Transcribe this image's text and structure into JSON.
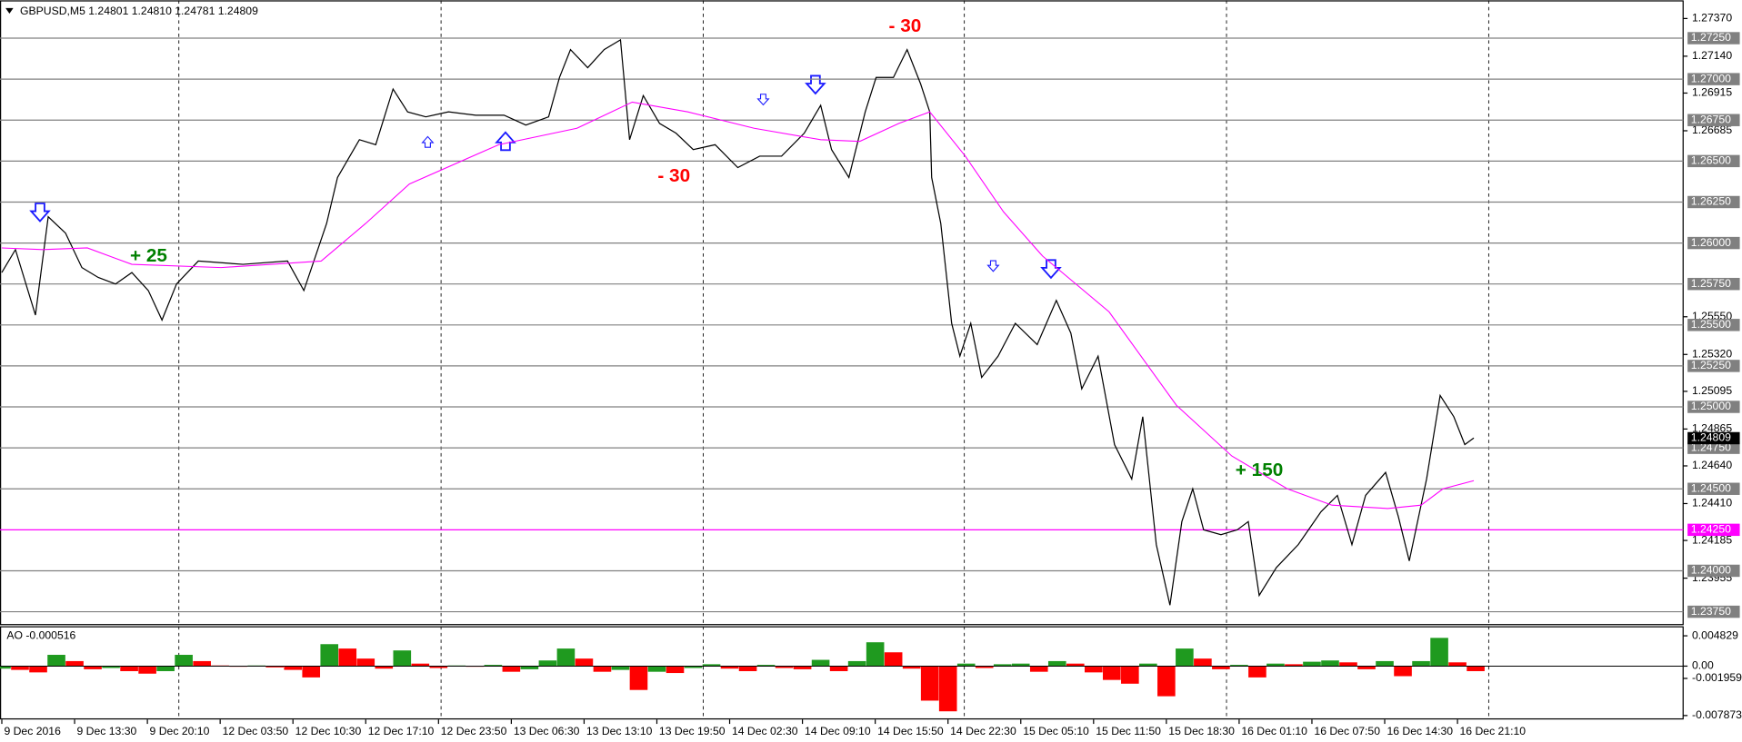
{
  "chart_data": [
    {
      "type": "line",
      "header": "GBPUSD,M5  1.24801 1.24810 1.24781 1.24809",
      "xlim": [
        -2,
        1848
      ],
      "ylim": [
        1.23675,
        1.27447
      ],
      "xticks": [
        {
          "value": 0,
          "label": "9 Dec 2016"
        },
        {
          "value": 80,
          "label": "9 Dec 13:30"
        },
        {
          "value": 160,
          "label": "9 Dec 20:10"
        },
        {
          "value": 240,
          "label": "12 Dec 03:50"
        },
        {
          "value": 320,
          "label": "12 Dec 10:30"
        },
        {
          "value": 400,
          "label": "12 Dec 17:10"
        },
        {
          "value": 480,
          "label": "12 Dec 23:50"
        },
        {
          "value": 560,
          "label": "13 Dec 06:30"
        },
        {
          "value": 640,
          "label": "13 Dec 13:10"
        },
        {
          "value": 720,
          "label": "13 Dec 19:50"
        },
        {
          "value": 800,
          "label": "14 Dec 02:30"
        },
        {
          "value": 880,
          "label": "14 Dec 09:10"
        },
        {
          "value": 960,
          "label": "14 Dec 15:50"
        },
        {
          "value": 1040,
          "label": "14 Dec 22:30"
        },
        {
          "value": 1120,
          "label": "15 Dec 05:10"
        },
        {
          "value": 1200,
          "label": "15 Dec 11:50"
        },
        {
          "value": 1280,
          "label": "15 Dec 18:30"
        },
        {
          "value": 1360,
          "label": "16 Dec 01:10"
        },
        {
          "value": 1440,
          "label": "16 Dec 07:50"
        },
        {
          "value": 1520,
          "label": "16 Dec 14:30"
        },
        {
          "value": 1600,
          "label": "16 Dec 21:10"
        }
      ],
      "yticks": [
        {
          "value": 1.2737,
          "label": "1.27370"
        },
        {
          "value": 1.2714,
          "label": "1.27140"
        },
        1.26915,
        1.26685,
        {
          "value": 1.2555,
          "label": "1.25550"
        },
        {
          "value": 1.2532,
          "label": "1.25320"
        },
        1.25095,
        1.24865,
        {
          "value": 1.2464,
          "label": "1.24640"
        },
        {
          "value": 1.2441,
          "label": "1.24410"
        },
        1.24185,
        1.23955
      ],
      "levels": [
        {
          "value": 1.2725,
          "label": "1.27250"
        },
        {
          "value": 1.27,
          "label": "1.27000"
        },
        {
          "value": 1.2675,
          "label": "1.26750"
        },
        {
          "value": 1.265,
          "label": "1.26500"
        },
        {
          "value": 1.2625,
          "label": "1.26250"
        },
        {
          "value": 1.26,
          "label": "1.26000"
        },
        {
          "value": 1.2575,
          "label": "1.25750"
        },
        {
          "value": 1.255,
          "label": "1.25500"
        },
        {
          "value": 1.2525,
          "label": "1.25250"
        },
        {
          "value": 1.25,
          "label": "1.25000"
        },
        {
          "value": 1.2475,
          "label": "1.24750"
        },
        {
          "value": 1.245,
          "label": "1.24500"
        },
        {
          "value": 1.24,
          "label": "1.24000"
        },
        {
          "value": 1.2375,
          "label": "1.23750"
        }
      ],
      "level_color": "#808080",
      "highlight_level": {
        "value": 1.2425,
        "label": "1.24250",
        "color": "#ff00ff"
      },
      "last_price": 1.24809,
      "series": [
        {
          "color": "#000000",
          "x": [
            0,
            15,
            37,
            51,
            70,
            88,
            106,
            125,
            143,
            161,
            176,
            192,
            216,
            265,
            314,
            332,
            357,
            369,
            393,
            411,
            430,
            446,
            466,
            491,
            521,
            552,
            576,
            601,
            613,
            625,
            644,
            662,
            680,
            690,
            705,
            723,
            741,
            760,
            784,
            809,
            833,
            857,
            882,
            900,
            912,
            931,
            949,
            961,
            980,
            995,
            1010,
            1020,
            1022,
            1032,
            1044,
            1053,
            1065,
            1077,
            1095,
            1114,
            1138,
            1159,
            1175,
            1187,
            1205,
            1223,
            1242,
            1254,
            1269,
            1284,
            1297,
            1309,
            1321,
            1340,
            1358,
            1370,
            1382,
            1401,
            1425,
            1450,
            1468,
            1484,
            1499,
            1521,
            1535,
            1547,
            1566,
            1581,
            1596,
            1608,
            1618
          ],
          "values": [
            1.2582,
            1.2596,
            1.2556,
            1.2616,
            1.2606,
            1.2585,
            1.2579,
            1.2575,
            1.2582,
            1.2571,
            1.2553,
            1.2575,
            1.2589,
            1.2587,
            1.2589,
            1.2571,
            1.2612,
            1.264,
            1.2663,
            1.266,
            1.2694,
            1.268,
            1.2677,
            1.268,
            1.2678,
            1.2678,
            1.2672,
            1.2677,
            1.2701,
            1.2718,
            1.2707,
            1.2718,
            1.2724,
            1.2663,
            1.269,
            1.2673,
            1.2667,
            1.2657,
            1.266,
            1.2646,
            1.2653,
            1.2653,
            1.2667,
            1.2684,
            1.2657,
            1.264,
            1.268,
            1.2701,
            1.2701,
            1.2718,
            1.2697,
            1.268,
            1.264,
            1.2612,
            1.2551,
            1.2531,
            1.2551,
            1.2518,
            1.2531,
            1.2551,
            1.2538,
            1.2565,
            1.2545,
            1.2511,
            1.2531,
            1.2477,
            1.2456,
            1.2494,
            1.2416,
            1.2379,
            1.243,
            1.245,
            1.2425,
            1.2422,
            1.2425,
            1.243,
            1.2385,
            1.2402,
            1.2416,
            1.2436,
            1.2446,
            1.2416,
            1.2446,
            1.246,
            1.2433,
            1.2406,
            1.2456,
            1.2507,
            1.2494,
            1.2477,
            1.2481
          ]
        },
        {
          "color": "#ff00ff",
          "x": [
            0,
            45,
            94,
            143,
            241,
            351,
            400,
            448,
            546,
            632,
            693,
            754,
            827,
            900,
            943,
            986,
            1020,
            1059,
            1101,
            1144,
            1217,
            1291,
            1352,
            1413,
            1462,
            1523,
            1560,
            1584,
            1618
          ],
          "values": [
            1.2597,
            1.2596,
            1.2597,
            1.2587,
            1.2585,
            1.2589,
            1.2612,
            1.2636,
            1.266,
            1.267,
            1.2686,
            1.268,
            1.267,
            1.2663,
            1.2662,
            1.2673,
            1.268,
            1.2653,
            1.2619,
            1.2592,
            1.2558,
            1.2501,
            1.247,
            1.245,
            1.244,
            1.2438,
            1.244,
            1.245,
            1.2455
          ]
        }
      ],
      "annotations": [
        {
          "text": "+ 25",
          "color": "#008000"
        },
        {
          "text": "- 30",
          "color": "#ff0000"
        },
        {
          "text": "- 30",
          "color": "#ff0000"
        },
        {
          "text": "+ 150",
          "color": "#008000"
        }
      ]
    },
    {
      "type": "ao",
      "header": "AO -0.000516",
      "xlim": [
        -2,
        1848
      ],
      "ylim": [
        -0.0085,
        0.006
      ],
      "yticks": [
        0.004829,
        {
          "value": 0,
          "label": "0.00"
        },
        -0.001959,
        -0.007873
      ],
      "up_color": "#1f9a1f",
      "down_color": "#ff0000",
      "x": [
        0,
        20,
        40,
        60,
        80,
        100,
        120,
        140,
        160,
        180,
        200,
        220,
        240,
        260,
        280,
        300,
        320,
        340,
        360,
        380,
        400,
        420,
        440,
        460,
        480,
        500,
        520,
        540,
        560,
        580,
        600,
        620,
        640,
        660,
        680,
        700,
        720,
        740,
        760,
        780,
        800,
        820,
        840,
        860,
        880,
        900,
        920,
        940,
        960,
        980,
        1000,
        1020,
        1040,
        1060,
        1080,
        1100,
        1120,
        1140,
        1160,
        1180,
        1200,
        1220,
        1240,
        1260,
        1280,
        1300,
        1320,
        1340,
        1360,
        1380,
        1400,
        1420,
        1440,
        1460,
        1480,
        1500,
        1520,
        1540,
        1560,
        1580,
        1600,
        1620
      ],
      "values": [
        -0.0004,
        -0.0006,
        -0.001,
        0.0018,
        0.0008,
        -0.0005,
        -0.0003,
        -0.0008,
        -0.0012,
        -0.0008,
        0.0018,
        0.0008,
        0.0001,
        -0.0001,
        0.0001,
        -0.0002,
        -0.0006,
        -0.0018,
        0.0035,
        0.0028,
        0.0012,
        -0.0004,
        0.0025,
        0.0004,
        -0.0003,
        0.0001,
        -0.0001,
        0.0002,
        -0.0009,
        -0.0005,
        0.0009,
        0.0028,
        0.0012,
        -0.0009,
        -0.0006,
        -0.0038,
        -0.0009,
        -0.0011,
        -0.0003,
        0.0003,
        -0.0004,
        -0.0008,
        0.0002,
        -0.0003,
        -0.0005,
        0.001,
        -0.0008,
        0.0008,
        0.0038,
        0.0022,
        -0.0004,
        -0.0055,
        -0.0072,
        0.0004,
        -0.0003,
        0.0003,
        0.0004,
        -0.0009,
        0.0008,
        0.0004,
        -0.001,
        -0.0022,
        -0.0028,
        0.0004,
        -0.0048,
        0.0028,
        0.0012,
        -0.0005,
        0.0002,
        -0.0018,
        0.0004,
        0.0003,
        0.0007,
        0.0009,
        0.0006,
        -0.0005,
        0.0008,
        -0.0016,
        0.0008,
        0.0045,
        0.0006,
        -0.0008
      ]
    }
  ]
}
